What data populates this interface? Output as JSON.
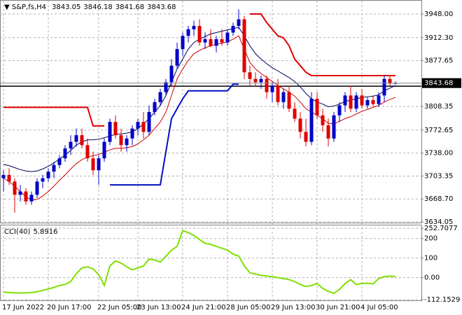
{
  "chart_data": [
    {
      "type": "candlestick",
      "title": "S&P,fs,H4",
      "categories": [
        "17 Jun 2022",
        null,
        null,
        null,
        null,
        null,
        null,
        null,
        "20 Jun 17:00",
        null,
        null,
        null,
        null,
        null,
        null,
        null,
        null,
        "22 Jun 05:00",
        null,
        null,
        null,
        null,
        null,
        null,
        "23 Jun 13:00",
        null,
        null,
        null,
        null,
        null,
        null,
        null,
        "24 Jun 21:00",
        null,
        null,
        null,
        null,
        null,
        null,
        null,
        "28 Jun 05:00",
        null,
        null,
        null,
        null,
        null,
        null,
        null,
        "29 Jun 13:00",
        null,
        null,
        null,
        null,
        null,
        null,
        null,
        "30 Jun 21:00",
        null,
        null,
        null,
        null,
        null,
        null,
        null,
        "4 Jul 05:00",
        null,
        null,
        null,
        null,
        null,
        null
      ],
      "open": [
        3700,
        3705,
        3695,
        3675,
        3680,
        3665,
        3675,
        3695,
        3700,
        3710,
        3720,
        3730,
        3745,
        3755,
        3765,
        3750,
        3730,
        3712,
        3730,
        3755,
        3785,
        3765,
        3750,
        3760,
        3775,
        3785,
        3770,
        3800,
        3815,
        3830,
        3845,
        3870,
        3895,
        3915,
        3925,
        3930,
        3905,
        3910,
        3900,
        3910,
        3905,
        3920,
        3930,
        3940,
        3860,
        3850,
        3845,
        3850,
        3830,
        3840,
        3815,
        3830,
        3805,
        3790,
        3770,
        3755,
        3820,
        3795,
        3780,
        3760,
        3795,
        3810,
        3825,
        3805,
        3825,
        3810,
        3818,
        3812,
        3825,
        3850,
        3843.05
      ],
      "high": [
        3712,
        3715,
        3700,
        3690,
        3685,
        3680,
        3700,
        3705,
        3715,
        3725,
        3735,
        3750,
        3765,
        3775,
        3775,
        3760,
        3740,
        3735,
        3760,
        3790,
        3795,
        3775,
        3765,
        3780,
        3790,
        3800,
        3810,
        3820,
        3835,
        3850,
        3880,
        3905,
        3920,
        3930,
        3938,
        3940,
        3920,
        3925,
        3915,
        3925,
        3925,
        3935,
        3955,
        3945,
        3870,
        3860,
        3855,
        3855,
        3845,
        3850,
        3835,
        3840,
        3815,
        3800,
        3790,
        3830,
        3830,
        3805,
        3790,
        3800,
        3815,
        3830,
        3840,
        3830,
        3835,
        3822,
        3825,
        3830,
        3855,
        3855,
        3846.18
      ],
      "low": [
        3680,
        3690,
        3648,
        3665,
        3660,
        3660,
        3670,
        3685,
        3695,
        3700,
        3715,
        3725,
        3735,
        3748,
        3745,
        3725,
        3705,
        3690,
        3725,
        3750,
        3760,
        3740,
        3740,
        3750,
        3765,
        3760,
        3765,
        3795,
        3810,
        3825,
        3840,
        3865,
        3885,
        3905,
        3915,
        3900,
        3895,
        3898,
        3890,
        3900,
        3900,
        3915,
        3925,
        3850,
        3840,
        3838,
        3835,
        3820,
        3815,
        3810,
        3805,
        3800,
        3785,
        3760,
        3748,
        3750,
        3790,
        3770,
        3748,
        3755,
        3785,
        3800,
        3800,
        3800,
        3805,
        3805,
        3808,
        3808,
        3815,
        3840,
        3841.68
      ],
      "close": [
        3705,
        3695,
        3675,
        3680,
        3665,
        3675,
        3695,
        3700,
        3710,
        3720,
        3730,
        3745,
        3755,
        3765,
        3750,
        3730,
        3712,
        3730,
        3755,
        3785,
        3765,
        3750,
        3760,
        3775,
        3785,
        3770,
        3800,
        3815,
        3830,
        3845,
        3870,
        3895,
        3915,
        3925,
        3930,
        3905,
        3910,
        3900,
        3910,
        3905,
        3920,
        3930,
        3940,
        3860,
        3850,
        3845,
        3850,
        3830,
        3840,
        3815,
        3830,
        3805,
        3790,
        3770,
        3755,
        3820,
        3795,
        3780,
        3760,
        3795,
        3810,
        3825,
        3805,
        3825,
        3810,
        3818,
        3812,
        3825,
        3850,
        3843.05,
        3843.68
      ],
      "up_color": "#0000c8",
      "down_color": "#e00000",
      "series": [
        {
          "color": "#000060",
          "values": [
            3721,
            3719,
            3716,
            3713,
            3711,
            3710,
            3711,
            3714,
            3718,
            3723,
            3729,
            3735,
            3742,
            3750,
            3755,
            3758,
            3758,
            3759,
            3761,
            3764,
            3766,
            3767,
            3768,
            3770,
            3775,
            3782,
            3790,
            3800,
            3810,
            3825,
            3845,
            3865,
            3880,
            3895,
            3905,
            3910,
            3914,
            3918,
            3920,
            3922,
            3924,
            3926,
            3928,
            3915,
            3900,
            3888,
            3880,
            3873,
            3867,
            3862,
            3857,
            3852,
            3846,
            3838,
            3828,
            3820,
            3815,
            3812,
            3808,
            3809,
            3812,
            3816,
            3818,
            3820,
            3822,
            3823,
            3824,
            3826,
            3832,
            3836,
            3840
          ]
        },
        {
          "color": "#d00000",
          "values": [
            3700,
            3695,
            3688,
            3680,
            3672,
            3667,
            3668,
            3673,
            3680,
            3688,
            3697,
            3705,
            3714,
            3722,
            3728,
            3732,
            3734,
            3736,
            3739,
            3743,
            3745,
            3745,
            3746,
            3748,
            3752,
            3758,
            3765,
            3775,
            3785,
            3800,
            3825,
            3850,
            3865,
            3878,
            3888,
            3893,
            3897,
            3900,
            3902,
            3904,
            3906,
            3910,
            3915,
            3895,
            3875,
            3865,
            3858,
            3852,
            3846,
            3840,
            3835,
            3830,
            3824,
            3815,
            3805,
            3800,
            3795,
            3790,
            3783,
            3782,
            3786,
            3790,
            3793,
            3797,
            3801,
            3804,
            3807,
            3810,
            3815,
            3819,
            3822
          ]
        },
        {
          "color": "#e00000",
          "values": [
            3807,
            3807,
            3807,
            3807,
            3807,
            3807,
            3807,
            3807,
            3807,
            3807,
            3807,
            3807,
            3807,
            3807,
            3807,
            3807,
            3779,
            3779,
            3779,
            null,
            null,
            null,
            null,
            null,
            null,
            null,
            null,
            null,
            null,
            null,
            null,
            null,
            null,
            null,
            null,
            null,
            null,
            null,
            null,
            null,
            null,
            null,
            null,
            null,
            3948,
            3948,
            3948,
            3935,
            3925,
            3915,
            3912,
            3900,
            3880,
            3870,
            3860,
            3855,
            3855,
            3855,
            3855,
            3855,
            3855,
            3855,
            3855,
            3855,
            3855,
            3855,
            3855,
            3855,
            3855,
            3855,
            3855
          ]
        },
        {
          "color": "#0010c0",
          "values": [
            null,
            null,
            null,
            null,
            null,
            null,
            null,
            null,
            null,
            null,
            null,
            null,
            null,
            null,
            null,
            null,
            null,
            null,
            null,
            3690,
            3690,
            3690,
            3690,
            3690,
            3690,
            3690,
            3690,
            3690,
            3690,
            3740,
            3790,
            3805,
            3820,
            3832,
            3832,
            3832,
            3832,
            3832,
            3832,
            3832,
            3832,
            3842,
            3842,
            null,
            null,
            null,
            null,
            null,
            null,
            null,
            null,
            null,
            null,
            null,
            null,
            null,
            null,
            null,
            null,
            null,
            null,
            null,
            null,
            null,
            null,
            null,
            null,
            null,
            null,
            null,
            null
          ]
        }
      ],
      "level": 3839,
      "ylim": [
        3633,
        3966
      ],
      "yticks": [
        {
          "value": 3948,
          "label": "3948.00"
        },
        {
          "value": 3912.3,
          "label": "3912.30"
        },
        {
          "value": 3877.65,
          "label": "3877.65"
        },
        {
          "value": 3808.35,
          "label": "3808.35"
        },
        {
          "value": 3772.65,
          "label": "3772.65"
        },
        {
          "value": 3738,
          "label": "3738.00"
        },
        {
          "value": 3703.35,
          "label": "3703.35"
        },
        {
          "value": 3668.7,
          "label": "3668.70"
        },
        {
          "value": 3634.05,
          "label": "3634.05"
        }
      ],
      "grid": true
    },
    {
      "type": "line",
      "title": "CCI(40)",
      "color": "#7ee000",
      "values": [
        -74,
        -76,
        -78,
        -78,
        -78,
        -76,
        -72,
        -65,
        -58,
        -50,
        -40,
        -35,
        -20,
        20,
        50,
        55,
        45,
        15,
        -40,
        60,
        85,
        75,
        55,
        40,
        50,
        60,
        95,
        90,
        80,
        110,
        140,
        160,
        240,
        230,
        215,
        195,
        175,
        170,
        160,
        150,
        140,
        120,
        110,
        60,
        25,
        18,
        12,
        8,
        5,
        0,
        -5,
        -10,
        -20,
        -35,
        -45,
        -40,
        -30,
        -55,
        -70,
        -80,
        -60,
        -30,
        -10,
        -35,
        -30,
        -28,
        -32,
        -5,
        5,
        8,
        5.8916
      ],
      "ylim": [
        -112.1529,
        252.7077
      ],
      "yticks": [
        {
          "value": 252.7077,
          "label": "252.7077"
        },
        200,
        100,
        {
          "value": 0,
          "label": "0.00"
        },
        {
          "value": -112.1529,
          "label": "-112.1529"
        }
      ],
      "grid": true
    }
  ]
}
